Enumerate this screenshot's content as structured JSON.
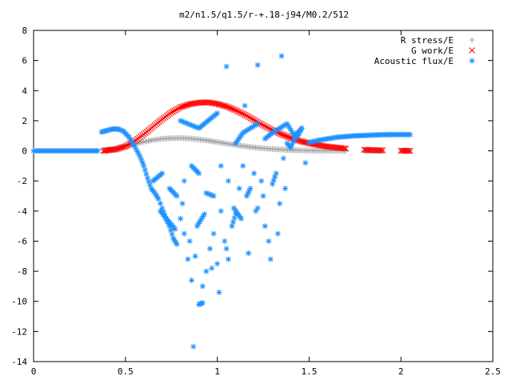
{
  "chart_data": {
    "type": "scatter",
    "title": "m2/n1.5/q1.5/r-+.18-j94/M0.2/512",
    "xlabel": "",
    "ylabel": "",
    "xlim": [
      0,
      2.5
    ],
    "ylim": [
      -14,
      8
    ],
    "x_ticks": [
      "0",
      "0.5",
      "1",
      "1.5",
      "2",
      "2.5"
    ],
    "x_tick_values": [
      0,
      0.5,
      1,
      1.5,
      2,
      2.5
    ],
    "y_ticks": [
      "8",
      "6",
      "4",
      "2",
      "0",
      "-2",
      "-4",
      "-6",
      "-8",
      "-10",
      "-12",
      "-14"
    ],
    "y_tick_values": [
      8,
      6,
      4,
      2,
      0,
      -2,
      -4,
      -6,
      -8,
      -10,
      -12,
      -14
    ],
    "grid": false,
    "legend_position": "top-right",
    "series": [
      {
        "name": "R stress/E",
        "marker": "plus",
        "color": "#a0a0a0",
        "x": [
          0.38,
          0.45,
          0.5,
          0.55,
          0.6,
          0.65,
          0.7,
          0.75,
          0.8,
          0.85,
          0.9,
          0.95,
          1.0,
          1.05,
          1.1,
          1.15,
          1.2,
          1.25,
          1.3,
          1.35,
          1.4,
          1.45,
          1.5,
          1.55,
          1.6,
          1.7,
          1.8,
          1.9,
          2.0,
          2.05
        ],
        "y": [
          0.05,
          0.15,
          0.3,
          0.45,
          0.6,
          0.72,
          0.8,
          0.84,
          0.85,
          0.82,
          0.76,
          0.68,
          0.58,
          0.48,
          0.39,
          0.3,
          0.23,
          0.17,
          0.12,
          0.08,
          0.05,
          0.03,
          0.02,
          0.01,
          0.01,
          0.0,
          0.0,
          0.0,
          0.0,
          0.0
        ]
      },
      {
        "name": "G work/E",
        "marker": "cross",
        "color": "#ff0000",
        "x": [
          0.38,
          0.45,
          0.5,
          0.55,
          0.6,
          0.65,
          0.7,
          0.75,
          0.8,
          0.85,
          0.9,
          0.95,
          1.0,
          1.05,
          1.1,
          1.15,
          1.2,
          1.25,
          1.3,
          1.35,
          1.4,
          1.45,
          1.5,
          1.55,
          1.6,
          1.7,
          1.8,
          1.9,
          2.0,
          2.05
        ],
        "y": [
          0.0,
          0.1,
          0.3,
          0.65,
          1.1,
          1.6,
          2.1,
          2.55,
          2.9,
          3.1,
          3.2,
          3.22,
          3.12,
          2.95,
          2.7,
          2.4,
          2.05,
          1.7,
          1.38,
          1.1,
          0.85,
          0.65,
          0.5,
          0.38,
          0.28,
          0.15,
          0.07,
          0.03,
          0.01,
          0.0
        ]
      },
      {
        "name": "Acoustic flux/E",
        "marker": "star",
        "color": "#1e90ff",
        "x": [
          0.0,
          0.05,
          0.1,
          0.15,
          0.2,
          0.25,
          0.3,
          0.35,
          0.37,
          0.4,
          0.43,
          0.46,
          0.49,
          0.52,
          0.55,
          0.58,
          0.6,
          0.62,
          0.64,
          0.66,
          0.68,
          0.7,
          0.72,
          0.74,
          0.76,
          0.78,
          0.8,
          0.82,
          0.84,
          0.86,
          0.88,
          0.9,
          0.92,
          0.94,
          0.96,
          0.98,
          1.0,
          1.02,
          1.04,
          1.06,
          1.08,
          1.1,
          1.12,
          1.14,
          1.16,
          1.18,
          1.2,
          1.22,
          1.24,
          1.26,
          1.28,
          1.3,
          1.32,
          1.34,
          1.36,
          1.38,
          1.4,
          1.42,
          1.44,
          1.46,
          1.48,
          1.5,
          1.55,
          1.6,
          1.65,
          1.7,
          1.75,
          1.8,
          1.85,
          1.9,
          1.95,
          2.0,
          2.05,
          0.65,
          0.7,
          0.74,
          0.78,
          0.82,
          0.86,
          0.9,
          0.94,
          0.98,
          1.02,
          1.06,
          1.1,
          1.14,
          1.18,
          1.22,
          1.26,
          1.3,
          1.34,
          1.38,
          1.42,
          1.46,
          0.69,
          0.73,
          0.77,
          0.81,
          0.85,
          0.89,
          0.93,
          0.97,
          1.01,
          1.05,
          1.09,
          1.13,
          1.17,
          1.21,
          1.25,
          1.29,
          1.33,
          1.37,
          0.8,
          0.9,
          0.95,
          1.0,
          1.05,
          1.15,
          1.22,
          1.35,
          0.87,
          0.92
        ],
        "y": [
          0.0,
          0.0,
          0.0,
          0.0,
          0.0,
          0.0,
          0.0,
          0.0,
          1.25,
          1.35,
          1.45,
          1.45,
          1.3,
          0.9,
          0.3,
          -0.4,
          -1.0,
          -1.8,
          -2.5,
          -2.8,
          -3.2,
          -3.8,
          -4.5,
          -5.0,
          -5.8,
          -6.2,
          -4.5,
          -5.5,
          -7.2,
          -8.6,
          -7.0,
          -10.2,
          -10.1,
          -8.0,
          -6.5,
          -5.5,
          -7.5,
          -4.0,
          -6.0,
          -7.2,
          -5.0,
          -4.2,
          -2.5,
          -1.0,
          -3.0,
          -2.5,
          -1.5,
          -3.8,
          -2.0,
          -5.0,
          -6.0,
          -2.2,
          -1.5,
          -3.5,
          -0.5,
          0.5,
          0.2,
          0.8,
          1.0,
          1.5,
          -0.8,
          0.55,
          0.7,
          0.8,
          0.9,
          0.95,
          1.0,
          1.02,
          1.05,
          1.07,
          1.08,
          1.08,
          1.08,
          -2.0,
          -1.5,
          -2.5,
          -3.0,
          -2.0,
          -1.0,
          -1.5,
          -2.8,
          -3.0,
          -1.0,
          -2.0,
          0.5,
          1.2,
          1.5,
          1.8,
          0.8,
          1.2,
          1.5,
          1.8,
          1.0,
          1.5,
          -4.0,
          -4.6,
          -5.2,
          -3.5,
          -6.0,
          -5.0,
          -4.2,
          -7.8,
          -9.4,
          -6.5,
          -3.8,
          -4.5,
          -6.8,
          -4.0,
          -3.0,
          -7.2,
          -5.5,
          -2.5,
          2.0,
          1.5,
          2.0,
          2.5,
          5.6,
          3.0,
          5.7,
          6.3,
          -13.0,
          -9.0
        ]
      }
    ]
  }
}
